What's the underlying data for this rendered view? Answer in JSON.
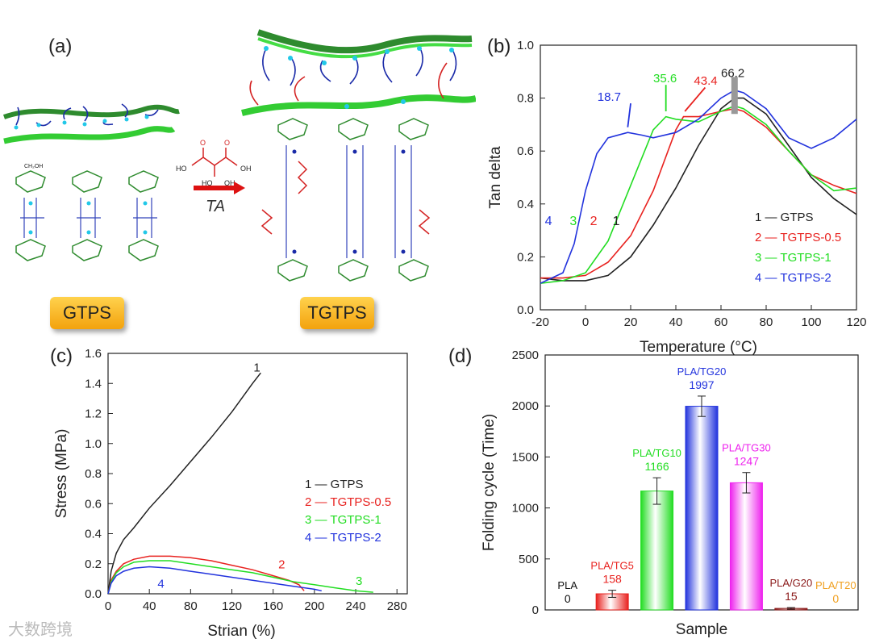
{
  "figure": {
    "panel_labels": {
      "a": "(a)",
      "b": "(b)",
      "c": "(c)",
      "d": "(d)"
    },
    "scheme": {
      "left_label": "GTPS",
      "right_label": "TGTPS",
      "arrow_label": "TA",
      "molecule_labels": [
        "HO",
        "OH",
        "O",
        "HO",
        "OH",
        "O"
      ],
      "glucose_group": "CH₂OH"
    },
    "watermark": "大数跨境",
    "colors": {
      "c1": "#222222",
      "c2": "#e8221f",
      "c3": "#22dd22",
      "c4": "#2233dd",
      "pla": "#111111",
      "tg5": "#e8221f",
      "tg10": "#22dd22",
      "tg20": "#2233dd",
      "tg30": "#ee22ee",
      "g20": "#8b1a1a",
      "t20": "#f0a020"
    }
  },
  "chart_data": [
    {
      "id": "b",
      "type": "line",
      "xlabel": "Temperature (°C)",
      "ylabel": "Tan delta",
      "xlim": [
        -20,
        120
      ],
      "ylim": [
        0.0,
        1.0
      ],
      "xticks": [
        "-20",
        "0",
        "20",
        "40",
        "60",
        "80",
        "100",
        "120"
      ],
      "yticks": [
        "0.0",
        "0.2",
        "0.4",
        "0.6",
        "0.8",
        "1.0"
      ],
      "legend": [
        "1 — GTPS",
        "2 — TGTPS-0.5",
        "3 — TGTPS-1",
        "4 — TGTPS-2"
      ],
      "curve_numbers": [
        "1",
        "2",
        "3",
        "4"
      ],
      "annotations": [
        "18.7",
        "35.6",
        "43.4",
        "66.2"
      ],
      "series": [
        {
          "name": "GTPS",
          "x": [
            -20,
            -10,
            0,
            10,
            20,
            30,
            40,
            50,
            60,
            66,
            70,
            80,
            90,
            100,
            110,
            120
          ],
          "y": [
            0.12,
            0.11,
            0.11,
            0.13,
            0.2,
            0.32,
            0.46,
            0.62,
            0.76,
            0.8,
            0.8,
            0.74,
            0.62,
            0.5,
            0.42,
            0.36
          ]
        },
        {
          "name": "TGTPS-0.5",
          "x": [
            -20,
            -10,
            0,
            10,
            20,
            30,
            40,
            43.4,
            50,
            60,
            66,
            70,
            80,
            90,
            100,
            110,
            120
          ],
          "y": [
            0.12,
            0.12,
            0.13,
            0.18,
            0.28,
            0.45,
            0.68,
            0.73,
            0.73,
            0.75,
            0.76,
            0.75,
            0.69,
            0.6,
            0.51,
            0.47,
            0.44
          ]
        },
        {
          "name": "TGTPS-1",
          "x": [
            -20,
            -10,
            0,
            10,
            20,
            30,
            35.6,
            40,
            50,
            60,
            66,
            70,
            80,
            90,
            100,
            110,
            120
          ],
          "y": [
            0.1,
            0.11,
            0.14,
            0.26,
            0.47,
            0.68,
            0.73,
            0.72,
            0.71,
            0.75,
            0.77,
            0.76,
            0.7,
            0.6,
            0.51,
            0.45,
            0.46
          ]
        },
        {
          "name": "TGTPS-2",
          "x": [
            -20,
            -10,
            -5,
            0,
            5,
            10,
            18.7,
            25,
            30,
            40,
            50,
            60,
            66,
            70,
            80,
            90,
            100,
            110,
            120
          ],
          "y": [
            0.1,
            0.14,
            0.25,
            0.45,
            0.59,
            0.65,
            0.67,
            0.66,
            0.65,
            0.67,
            0.72,
            0.8,
            0.83,
            0.82,
            0.76,
            0.65,
            0.61,
            0.65,
            0.72
          ]
        }
      ]
    },
    {
      "id": "c",
      "type": "line",
      "xlabel": "Strian (%)",
      "ylabel": "Stress (MPa)",
      "xlim": [
        0,
        290
      ],
      "ylim": [
        0.0,
        1.6
      ],
      "xticks": [
        "0",
        "40",
        "80",
        "120",
        "160",
        "200",
        "240",
        "280"
      ],
      "yticks": [
        "0.0",
        "0.2",
        "0.4",
        "0.6",
        "0.8",
        "1.0",
        "1.2",
        "1.4",
        "1.6"
      ],
      "legend": [
        "1 — GTPS",
        "2 — TGTPS-0.5",
        "3 — TGTPS-1",
        "4 — TGTPS-2"
      ],
      "curve_numbers": [
        "1",
        "2",
        "3",
        "4"
      ],
      "series": [
        {
          "name": "GTPS",
          "x": [
            0,
            3,
            8,
            15,
            25,
            40,
            60,
            80,
            100,
            120,
            140,
            148
          ],
          "y": [
            0,
            0.15,
            0.27,
            0.36,
            0.44,
            0.57,
            0.72,
            0.88,
            1.04,
            1.21,
            1.4,
            1.47
          ]
        },
        {
          "name": "TGTPS-0.5",
          "x": [
            0,
            3,
            8,
            15,
            25,
            40,
            60,
            80,
            100,
            120,
            140,
            160,
            175,
            185,
            190
          ],
          "y": [
            0,
            0.09,
            0.15,
            0.2,
            0.23,
            0.25,
            0.25,
            0.24,
            0.22,
            0.19,
            0.16,
            0.12,
            0.09,
            0.06,
            0.02
          ]
        },
        {
          "name": "TGTPS-1",
          "x": [
            0,
            3,
            8,
            15,
            25,
            40,
            60,
            80,
            100,
            120,
            140,
            160,
            180,
            200,
            220,
            240,
            257
          ],
          "y": [
            0,
            0.08,
            0.14,
            0.18,
            0.21,
            0.22,
            0.22,
            0.2,
            0.18,
            0.16,
            0.14,
            0.11,
            0.08,
            0.06,
            0.04,
            0.02,
            0.01
          ]
        },
        {
          "name": "TGTPS-2",
          "x": [
            0,
            3,
            8,
            15,
            25,
            40,
            60,
            80,
            100,
            120,
            140,
            160,
            180,
            200,
            207
          ],
          "y": [
            0,
            0.07,
            0.12,
            0.15,
            0.17,
            0.18,
            0.17,
            0.15,
            0.13,
            0.11,
            0.09,
            0.07,
            0.05,
            0.03,
            0.02
          ]
        }
      ]
    },
    {
      "id": "d",
      "type": "bar",
      "xlabel": "Sample",
      "ylabel": "Folding cycle (Time)",
      "ylim": [
        0,
        2500
      ],
      "yticks": [
        "0",
        "500",
        "1000",
        "1500",
        "2000",
        "2500"
      ],
      "categories": [
        "PLA",
        "PLA/TG5",
        "PLA/TG10",
        "PLA/TG20",
        "PLA/TG30",
        "PLA/G20",
        "PLA/T20"
      ],
      "values": [
        0,
        158,
        1166,
        1997,
        1247,
        15,
        0
      ],
      "value_labels": [
        "0",
        "158",
        "1166",
        "1997",
        "1247",
        "15",
        "0"
      ],
      "errors": [
        0,
        35,
        130,
        100,
        100,
        8,
        0
      ]
    }
  ]
}
